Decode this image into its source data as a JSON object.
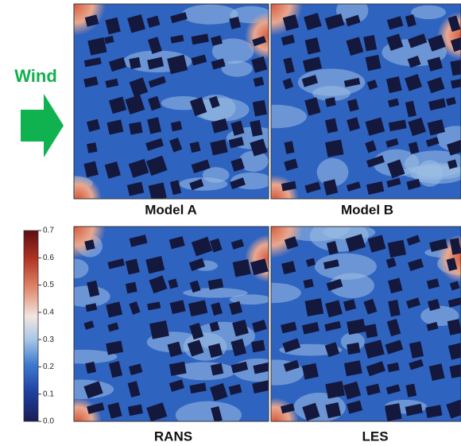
{
  "wind_label": "Wind",
  "panels": [
    {
      "label": "Model A"
    },
    {
      "label": "Model B"
    },
    {
      "label": "RANS"
    },
    {
      "label": "LES"
    }
  ],
  "colorbar": {
    "lim": [
      0,
      0.7
    ],
    "ticks": [
      {
        "value": 0,
        "label": "0.0"
      },
      {
        "value": 0.1,
        "label": "0.1"
      },
      {
        "value": 0.2,
        "label": "0.2"
      },
      {
        "value": 0.3,
        "label": "0.3"
      },
      {
        "value": 0.4,
        "label": "0.4"
      },
      {
        "value": 0.5,
        "label": "0.5"
      },
      {
        "value": 0.6,
        "label": "0.6"
      },
      {
        "value": 0.7,
        "label": "0.7"
      }
    ]
  }
}
